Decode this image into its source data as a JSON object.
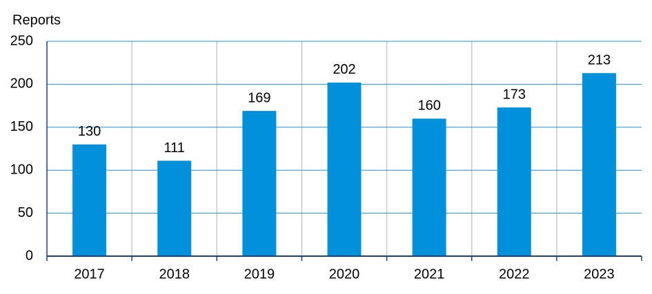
{
  "chart_data": {
    "type": "bar",
    "y_label": "Reports",
    "categories": [
      "2017",
      "2018",
      "2019",
      "2020",
      "2021",
      "2022",
      "2023"
    ],
    "values": [
      130,
      111,
      169,
      202,
      160,
      173,
      213
    ],
    "color": "#0091da",
    "ylim": [
      0,
      250
    ],
    "yticks": [
      0,
      50,
      100,
      150,
      200,
      250
    ],
    "grid": true
  }
}
